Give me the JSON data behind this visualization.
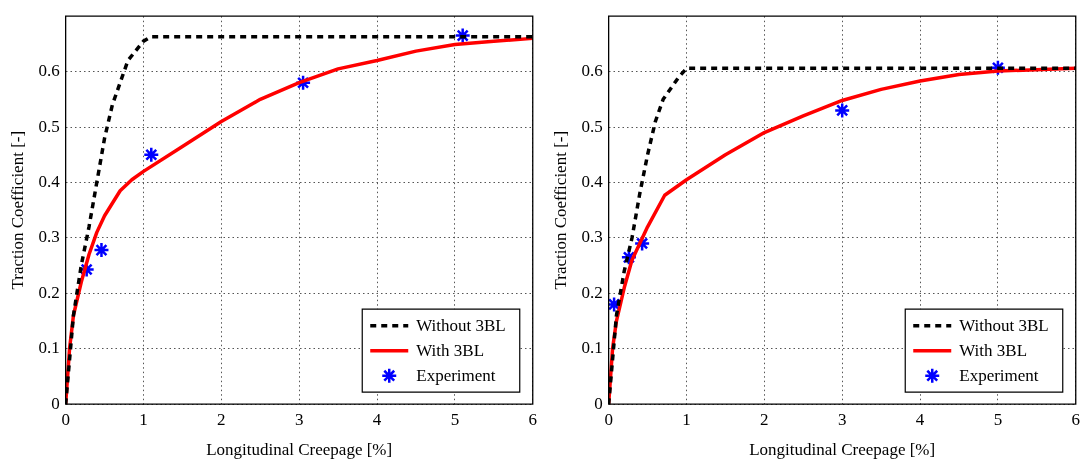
{
  "chart_data": [
    {
      "type": "line",
      "xlabel": "Longitudinal Creepage [%]",
      "ylabel": "Traction Coefficient [-]",
      "xlim": [
        0,
        6
      ],
      "xticks": [
        0,
        1,
        2,
        3,
        4,
        5,
        6
      ],
      "ylim": [
        0,
        0.7
      ],
      "yticks": [
        0,
        0.1,
        0.2,
        0.3,
        0.4,
        0.5,
        0.6
      ],
      "grid": true,
      "legend": "bottom right",
      "series": [
        {
          "name": "Without 3BL",
          "color": "#000000",
          "line_style": "dashed",
          "marker": "none",
          "x": [
            0,
            0.1,
            0.2,
            0.3,
            0.4,
            0.5,
            0.6,
            0.8,
            1.0,
            1.1,
            6
          ],
          "values": [
            0,
            0.16,
            0.25,
            0.32,
            0.4,
            0.48,
            0.54,
            0.62,
            0.655,
            0.663,
            0.663
          ]
        },
        {
          "name": "With 3BL",
          "color": "#ff0000",
          "line_style": "solid",
          "marker": "none",
          "x": [
            0,
            0.05,
            0.1,
            0.2,
            0.3,
            0.4,
            0.5,
            0.7,
            0.85,
            1.0,
            1.5,
            2,
            2.5,
            3,
            3.5,
            4,
            4.5,
            5,
            5.5,
            6
          ],
          "values": [
            0,
            0.1,
            0.16,
            0.22,
            0.27,
            0.31,
            0.34,
            0.385,
            0.405,
            0.42,
            0.465,
            0.51,
            0.55,
            0.58,
            0.605,
            0.62,
            0.637,
            0.649,
            0.655,
            0.66
          ]
        },
        {
          "name": "Experiment",
          "type": "scatter",
          "color": "#0000ff",
          "marker": "cross",
          "x": [
            0.27,
            0.46,
            1.1,
            3.05,
            5.1
          ],
          "values": [
            0.243,
            0.278,
            0.45,
            0.58,
            0.665
          ]
        }
      ]
    },
    {
      "type": "line",
      "xlabel": "Longitudinal Creepage [%]",
      "ylabel": "Traction Coefficient [-]",
      "xlim": [
        0,
        6
      ],
      "xticks": [
        0,
        1,
        2,
        3,
        4,
        5,
        6
      ],
      "ylim": [
        0,
        0.7
      ],
      "yticks": [
        0,
        0.1,
        0.2,
        0.3,
        0.4,
        0.5,
        0.6
      ],
      "grid": true,
      "legend": "bottom right",
      "series": [
        {
          "name": "Without 3BL",
          "color": "#000000",
          "line_style": "dashed",
          "marker": "none",
          "x": [
            0,
            0.1,
            0.2,
            0.3,
            0.4,
            0.5,
            0.6,
            0.7,
            0.9,
            1.0,
            6
          ],
          "values": [
            0,
            0.16,
            0.24,
            0.3,
            0.38,
            0.45,
            0.51,
            0.55,
            0.59,
            0.606,
            0.606
          ]
        },
        {
          "name": "With 3BL",
          "color": "#ff0000",
          "line_style": "solid",
          "marker": "none",
          "x": [
            0,
            0.05,
            0.1,
            0.2,
            0.3,
            0.5,
            0.72,
            1.0,
            1.5,
            2,
            2.5,
            3,
            3.5,
            4,
            4.5,
            5,
            6
          ],
          "values": [
            0,
            0.1,
            0.15,
            0.21,
            0.26,
            0.32,
            0.377,
            0.405,
            0.45,
            0.49,
            0.52,
            0.548,
            0.568,
            0.583,
            0.595,
            0.601,
            0.606
          ]
        },
        {
          "name": "Experiment",
          "type": "scatter",
          "color": "#0000ff",
          "marker": "cross",
          "x": [
            0.07,
            0.26,
            0.43,
            3.0,
            5.0
          ],
          "values": [
            0.18,
            0.265,
            0.29,
            0.53,
            0.607
          ]
        }
      ]
    }
  ]
}
